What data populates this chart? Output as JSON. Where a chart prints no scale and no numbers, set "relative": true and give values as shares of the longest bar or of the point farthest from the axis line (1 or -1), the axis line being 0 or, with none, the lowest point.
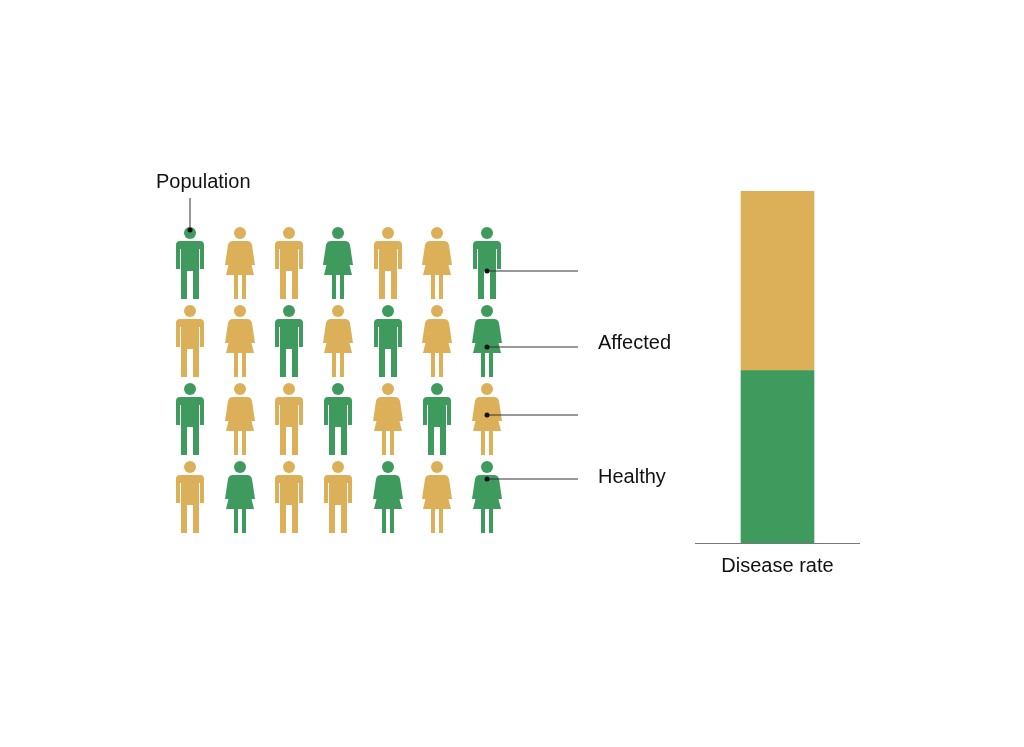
{
  "chart_data": {
    "type": "bar",
    "stacked": true,
    "relative": true,
    "categories": [
      "Disease rate"
    ],
    "series": [
      {
        "color": "#3f9a5e",
        "values": [
          0.49
        ]
      },
      {
        "color": "#dcb058",
        "values": [
          0.51
        ]
      }
    ],
    "annotations": [
      "Population",
      "Affected",
      "Healthy"
    ]
  }
}
